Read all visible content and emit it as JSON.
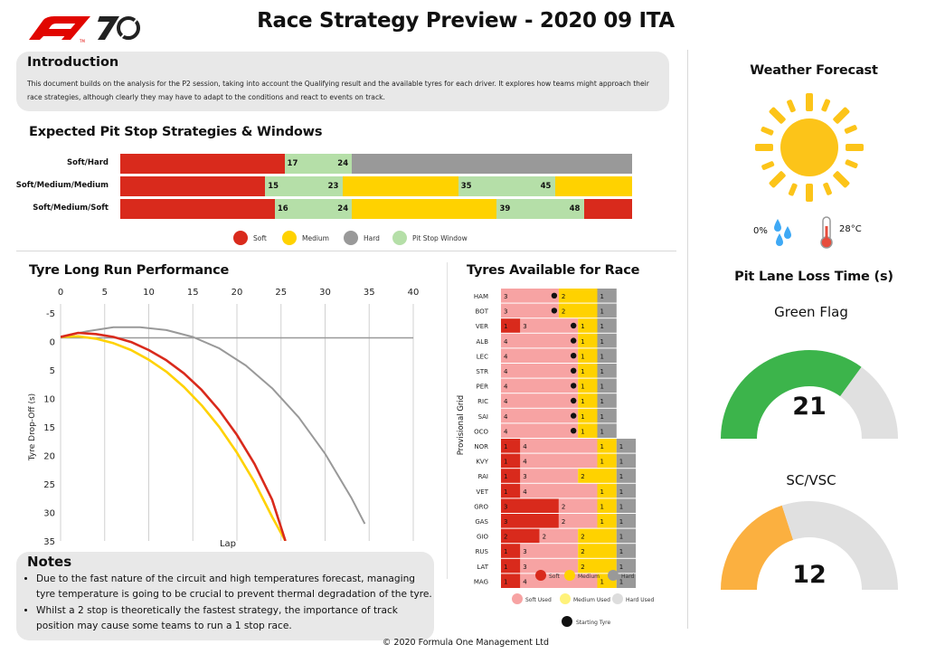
{
  "header": {
    "title": "Race Strategy Preview - 2020 09 ITA",
    "logo_text": "F1 70"
  },
  "intro": {
    "heading": "Introduction",
    "text": "This document builds on the analysis for the P2 session, taking into account the Qualifying result and the available tyres for each driver. It explores how teams might approach their race strategies, although clearly they may have to adapt to the conditions and react to events on track."
  },
  "pit_section": {
    "heading": "Expected Pit Stop Strategies & Windows"
  },
  "tyre_perf": {
    "heading": "Tyre Long Run Performance"
  },
  "tyres_avail": {
    "heading": "Tyres Available for Race",
    "ylabel": "Provisional Grid"
  },
  "notes": {
    "heading": "Notes",
    "items": [
      "Due to the fast nature of the circuit and high temperatures forecast, managing tyre temperature is going to be crucial to prevent thermal degradation of the tyre.",
      "Whilst a 2 stop is theoretically the fastest strategy, the importance of track position may cause some teams to run a 1 stop race."
    ]
  },
  "weather": {
    "heading": "Weather Forecast",
    "rain": "0%",
    "temp": "28°C",
    "sun_color": "#fcc419",
    "drop_color": "#3fa9f5",
    "icons": [
      "sun-icon",
      "raindrops-icon",
      "thermometer-icon"
    ]
  },
  "pitlane": {
    "heading": "Pit Lane Loss Time (s)",
    "green": {
      "label": "Green Flag",
      "value": "21",
      "fraction": 0.7,
      "color": "#3cb44b"
    },
    "sc": {
      "label": "SC/VSC",
      "value": "12",
      "fraction": 0.4,
      "color": "#fbb040"
    }
  },
  "footer": "© 2020 Formula One Management Ltd",
  "colors": {
    "soft": "#d92a1c",
    "medium": "#ffd200",
    "hard": "#999999",
    "window": "#b5dfa8",
    "soft_used": "#f7a3a3",
    "medium_used": "#fff27a",
    "hard_used": "#dddddd"
  },
  "chart_data": [
    {
      "type": "bar",
      "title": "Expected Pit Stop Strategies & Windows",
      "race_laps": 53,
      "strategies": [
        {
          "name": "Soft/Hard",
          "stints": [
            "soft",
            "hard"
          ],
          "windows": [
            [
              17,
              24
            ]
          ]
        },
        {
          "name": "Soft/Medium/Medium",
          "stints": [
            "soft",
            "medium",
            "medium"
          ],
          "windows": [
            [
              15,
              23
            ],
            [
              35,
              45
            ]
          ]
        },
        {
          "name": "Soft/Medium/Soft",
          "stints": [
            "soft",
            "medium",
            "soft"
          ],
          "windows": [
            [
              16,
              24
            ],
            [
              39,
              48
            ]
          ]
        }
      ],
      "legend": [
        "Soft",
        "Medium",
        "Hard",
        "Pit Stop Window"
      ]
    },
    {
      "type": "line",
      "title": "Tyre Long Run Performance",
      "xlabel": "Lap",
      "ylabel": "Tyre Drop-Off (s)",
      "xlim": [
        0,
        40
      ],
      "ylim": [
        -5,
        35
      ],
      "y_inverted": true,
      "xticks": [
        0,
        5,
        10,
        15,
        20,
        25,
        30,
        35,
        40
      ],
      "yticks": [
        -5,
        0,
        5,
        10,
        15,
        20,
        25,
        30,
        35
      ],
      "series": [
        {
          "color": "soft",
          "x": [
            0,
            2,
            4,
            6,
            8,
            10,
            12,
            14,
            16,
            18,
            20,
            22,
            24,
            25.5
          ],
          "y": [
            -0.8,
            -1.5,
            -1.3,
            -0.8,
            0.1,
            1.5,
            3.3,
            5.6,
            8.5,
            12.1,
            16.4,
            21.5,
            27.8,
            35
          ]
        },
        {
          "color": "medium",
          "x": [
            0,
            2,
            4,
            6,
            8,
            10,
            12,
            14,
            16,
            18,
            20,
            22,
            24,
            25.5
          ],
          "y": [
            -0.8,
            -0.9,
            -0.5,
            0.3,
            1.5,
            3.2,
            5.3,
            8.0,
            11.2,
            15.0,
            19.5,
            24.7,
            30.8,
            35
          ]
        },
        {
          "color": "hard",
          "x": [
            0,
            3,
            6,
            9,
            12,
            15,
            18,
            21,
            24,
            27,
            30,
            33,
            34.5
          ],
          "y": [
            -0.8,
            -1.8,
            -2.5,
            -2.5,
            -2.0,
            -0.8,
            1.2,
            4.2,
            8.2,
            13.3,
            19.7,
            27.5,
            32
          ]
        }
      ]
    },
    {
      "type": "bar",
      "title": "Tyres Available for Race",
      "ylabel": "Provisional Grid",
      "drivers": [
        {
          "code": "HAM",
          "segs": [
            [
              "soft_used",
              3
            ],
            [
              "medium",
              2
            ],
            [
              "hard",
              1
            ]
          ],
          "start": "soft_used"
        },
        {
          "code": "BOT",
          "segs": [
            [
              "soft_used",
              3
            ],
            [
              "medium",
              2
            ],
            [
              "hard",
              1
            ]
          ],
          "start": "soft_used"
        },
        {
          "code": "VER",
          "segs": [
            [
              "soft",
              1
            ],
            [
              "soft_used",
              3
            ],
            [
              "medium",
              1
            ],
            [
              "hard",
              1
            ]
          ],
          "start": "soft_used"
        },
        {
          "code": "ALB",
          "segs": [
            [
              "soft_used",
              4
            ],
            [
              "medium",
              1
            ],
            [
              "hard",
              1
            ]
          ],
          "start": "soft_used"
        },
        {
          "code": "LEC",
          "segs": [
            [
              "soft_used",
              4
            ],
            [
              "medium",
              1
            ],
            [
              "hard",
              1
            ]
          ],
          "start": "soft_used"
        },
        {
          "code": "STR",
          "segs": [
            [
              "soft_used",
              4
            ],
            [
              "medium",
              1
            ],
            [
              "hard",
              1
            ]
          ],
          "start": "soft_used"
        },
        {
          "code": "PER",
          "segs": [
            [
              "soft_used",
              4
            ],
            [
              "medium",
              1
            ],
            [
              "hard",
              1
            ]
          ],
          "start": "soft_used"
        },
        {
          "code": "RIC",
          "segs": [
            [
              "soft_used",
              4
            ],
            [
              "medium",
              1
            ],
            [
              "hard",
              1
            ]
          ],
          "start": "soft_used"
        },
        {
          "code": "SAI",
          "segs": [
            [
              "soft_used",
              4
            ],
            [
              "medium",
              1
            ],
            [
              "hard",
              1
            ]
          ],
          "start": "soft_used"
        },
        {
          "code": "OCO",
          "segs": [
            [
              "soft_used",
              4
            ],
            [
              "medium",
              1
            ],
            [
              "hard",
              1
            ]
          ],
          "start": "soft_used"
        },
        {
          "code": "NOR",
          "segs": [
            [
              "soft",
              1
            ],
            [
              "soft_used",
              4
            ],
            [
              "medium",
              1
            ],
            [
              "hard",
              1
            ]
          ]
        },
        {
          "code": "KVY",
          "segs": [
            [
              "soft",
              1
            ],
            [
              "soft_used",
              4
            ],
            [
              "medium",
              1
            ],
            [
              "hard",
              1
            ]
          ]
        },
        {
          "code": "RAI",
          "segs": [
            [
              "soft",
              1
            ],
            [
              "soft_used",
              3
            ],
            [
              "medium",
              2
            ],
            [
              "hard",
              1
            ]
          ]
        },
        {
          "code": "VET",
          "segs": [
            [
              "soft",
              1
            ],
            [
              "soft_used",
              4
            ],
            [
              "medium",
              1
            ],
            [
              "hard",
              1
            ]
          ]
        },
        {
          "code": "GRO",
          "segs": [
            [
              "soft",
              3
            ],
            [
              "soft_used",
              2
            ],
            [
              "medium",
              1
            ],
            [
              "hard",
              1
            ]
          ]
        },
        {
          "code": "GAS",
          "segs": [
            [
              "soft",
              3
            ],
            [
              "soft_used",
              2
            ],
            [
              "medium",
              1
            ],
            [
              "hard",
              1
            ]
          ]
        },
        {
          "code": "GIO",
          "segs": [
            [
              "soft",
              2
            ],
            [
              "soft_used",
              2
            ],
            [
              "medium",
              2
            ],
            [
              "hard",
              1
            ]
          ]
        },
        {
          "code": "RUS",
          "segs": [
            [
              "soft",
              1
            ],
            [
              "soft_used",
              3
            ],
            [
              "medium",
              2
            ],
            [
              "hard",
              1
            ]
          ]
        },
        {
          "code": "LAT",
          "segs": [
            [
              "soft",
              1
            ],
            [
              "soft_used",
              3
            ],
            [
              "medium",
              2
            ],
            [
              "hard",
              1
            ]
          ]
        },
        {
          "code": "MAG",
          "segs": [
            [
              "soft",
              1
            ],
            [
              "soft_used",
              4
            ],
            [
              "medium",
              1
            ],
            [
              "hard",
              1
            ]
          ]
        }
      ],
      "legend": {
        "soft": "Soft",
        "medium": "Medium",
        "hard": "Hard",
        "soft_used": "Soft Used",
        "medium_used": "Medium Used",
        "hard_used": "Hard Used",
        "starting": "Starting Tyre"
      }
    }
  ]
}
